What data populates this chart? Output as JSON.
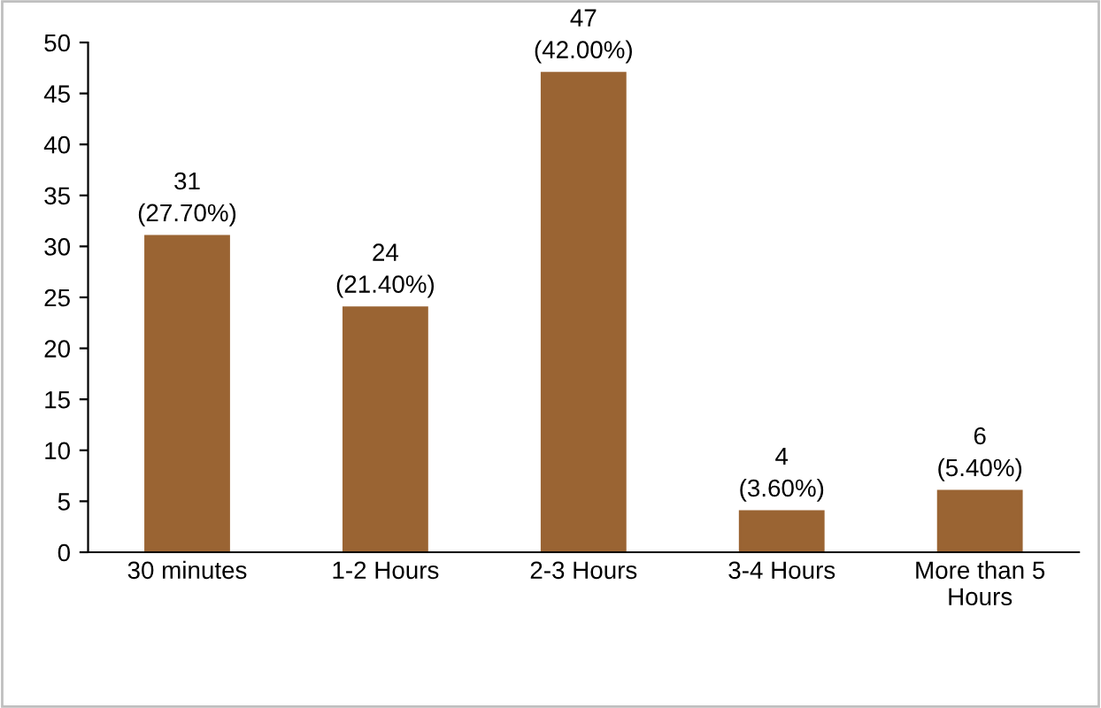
{
  "chart_data": {
    "type": "bar",
    "categories": [
      "30 minutes",
      "1-2 Hours",
      "2-3 Hours",
      "3-4 Hours",
      "More than 5\nHours"
    ],
    "values": [
      31,
      24,
      47,
      4,
      6
    ],
    "value_labels": [
      "31\n(27.70%)",
      "24\n(21.40%)",
      "47\n(42.00%)",
      "4\n(3.60%)",
      "6\n(5.40%)"
    ],
    "color": "#9a6433",
    "ylim": [
      0,
      50
    ],
    "yticks": [
      0,
      5,
      10,
      15,
      20,
      25,
      30,
      35,
      40,
      45,
      50
    ],
    "grid": false,
    "legend": false
  }
}
